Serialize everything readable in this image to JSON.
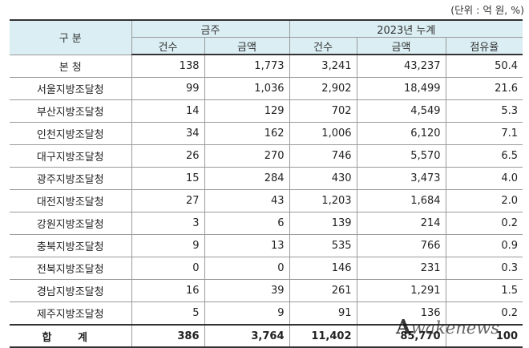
{
  "unit_note": "(단위 : 억 원, %)",
  "headers": {
    "category": "구 분",
    "this_week": "금주",
    "ytd_2023": "2023년 누계",
    "count": "건수",
    "amount": "금액",
    "share": "점유율"
  },
  "rows": [
    {
      "name": "본 청",
      "w_count": "138",
      "w_amount": "1,773",
      "y_count": "3,241",
      "y_amount": "43,237",
      "share": "50.4"
    },
    {
      "name": "서울지방조달청",
      "w_count": "99",
      "w_amount": "1,036",
      "y_count": "2,902",
      "y_amount": "18,499",
      "share": "21.6"
    },
    {
      "name": "부산지방조달청",
      "w_count": "14",
      "w_amount": "129",
      "y_count": "702",
      "y_amount": "4,549",
      "share": "5.3"
    },
    {
      "name": "인천지방조달청",
      "w_count": "34",
      "w_amount": "162",
      "y_count": "1,006",
      "y_amount": "6,120",
      "share": "7.1"
    },
    {
      "name": "대구지방조달청",
      "w_count": "26",
      "w_amount": "270",
      "y_count": "746",
      "y_amount": "5,570",
      "share": "6.5"
    },
    {
      "name": "광주지방조달청",
      "w_count": "15",
      "w_amount": "284",
      "y_count": "430",
      "y_amount": "3,473",
      "share": "4.0"
    },
    {
      "name": "대전지방조달청",
      "w_count": "27",
      "w_amount": "43",
      "y_count": "1,203",
      "y_amount": "1,684",
      "share": "2.0"
    },
    {
      "name": "강원지방조달청",
      "w_count": "3",
      "w_amount": "6",
      "y_count": "139",
      "y_amount": "214",
      "share": "0.2"
    },
    {
      "name": "충북지방조달청",
      "w_count": "9",
      "w_amount": "13",
      "y_count": "535",
      "y_amount": "766",
      "share": "0.9"
    },
    {
      "name": "전북지방조달청",
      "w_count": "0",
      "w_amount": "0",
      "y_count": "146",
      "y_amount": "231",
      "share": "0.3"
    },
    {
      "name": "경남지방조달청",
      "w_count": "16",
      "w_amount": "39",
      "y_count": "261",
      "y_amount": "1,291",
      "share": "1.5"
    },
    {
      "name": "제주지방조달청",
      "w_count": "5",
      "w_amount": "9",
      "y_count": "91",
      "y_amount": "136",
      "share": "0.2"
    }
  ],
  "total": {
    "name": "합 계",
    "w_count": "386",
    "w_amount": "3,764",
    "y_count": "11,402",
    "y_amount": "85,770",
    "share": "100"
  },
  "watermark": "Awakenews",
  "colors": {
    "header_bg": "#daeef3",
    "border": "#9a9a9a",
    "rule": "#333333"
  }
}
